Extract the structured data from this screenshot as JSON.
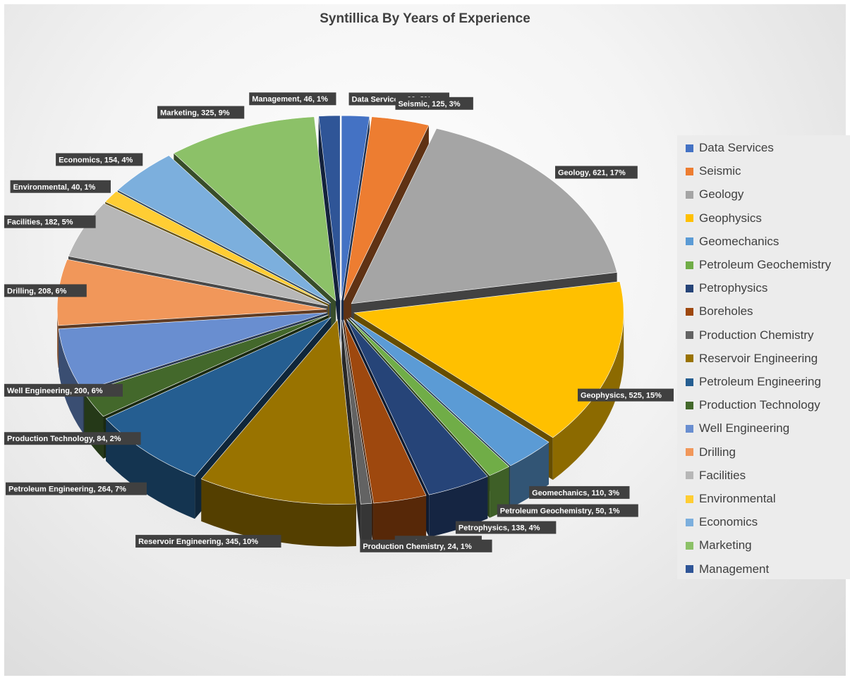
{
  "chart_data": {
    "type": "pie",
    "title": "Syntillica By Years of Experience",
    "legend_position": "right",
    "three_d": true,
    "exploded": true,
    "slices": [
      {
        "label": "Data Services",
        "value": 60,
        "percent": "2%",
        "color": "#4472C4"
      },
      {
        "label": "Seismic",
        "value": 125,
        "percent": "3%",
        "color": "#ED7D31"
      },
      {
        "label": "Geology",
        "value": 621,
        "percent": "17%",
        "color": "#A5A5A5"
      },
      {
        "label": "Geophysics",
        "value": 525,
        "percent": "15%",
        "color": "#FFC000"
      },
      {
        "label": "Geomechanics",
        "value": 110,
        "percent": "3%",
        "color": "#5B9BD5"
      },
      {
        "label": "Petroleum Geochemistry",
        "value": 50,
        "percent": "1%",
        "color": "#70AD47"
      },
      {
        "label": "Petrophysics",
        "value": 138,
        "percent": "4%",
        "color": "#264478"
      },
      {
        "label": "Boreholes",
        "value": 115,
        "percent": "3%",
        "color": "#9E480E"
      },
      {
        "label": "Production Chemistry",
        "value": 24,
        "percent": "1%",
        "color": "#636363"
      },
      {
        "label": "Reservoir Engineering",
        "value": 345,
        "percent": "10%",
        "color": "#997300"
      },
      {
        "label": "Petroleum Engineering",
        "value": 264,
        "percent": "7%",
        "color": "#255E91"
      },
      {
        "label": "Production Technology",
        "value": 84,
        "percent": "2%",
        "color": "#43682B"
      },
      {
        "label": "Well Engineering",
        "value": 200,
        "percent": "6%",
        "color": "#698ED0"
      },
      {
        "label": "Drilling",
        "value": 208,
        "percent": "6%",
        "color": "#F1975A"
      },
      {
        "label": "Facilities",
        "value": 182,
        "percent": "5%",
        "color": "#B7B7B7"
      },
      {
        "label": "Environmental",
        "value": 40,
        "percent": "1%",
        "color": "#FFCD33"
      },
      {
        "label": "Economics",
        "value": 154,
        "percent": "4%",
        "color": "#7CAFDD"
      },
      {
        "label": "Marketing",
        "value": 325,
        "percent": "9%",
        "color": "#8CC168"
      },
      {
        "label": "Management",
        "value": 46,
        "percent": "1%",
        "color": "#2F5597"
      }
    ]
  }
}
